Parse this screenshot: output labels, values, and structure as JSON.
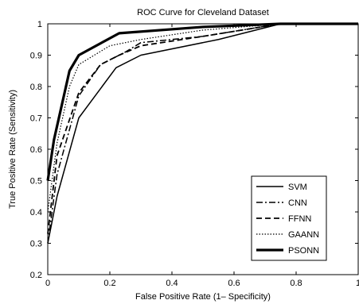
{
  "chart_data": {
    "type": "line",
    "title": "ROC Curve for Cleveland Dataset",
    "xlabel": "False Positive Rate (1– Specificity)",
    "ylabel": "True Positive Rate (Sensitivity)",
    "xlim": [
      0,
      1
    ],
    "ylim": [
      0.2,
      1
    ],
    "xticks": [
      "0",
      "0.2",
      "0.4",
      "0.6",
      "0.8",
      "1"
    ],
    "yticks": [
      "0.2",
      "0.3",
      "0.4",
      "0.5",
      "0.6",
      "0.7",
      "0.8",
      "0.9",
      "1"
    ],
    "grid": false,
    "legend_position": "bottom-right",
    "series": [
      {
        "name": "SVM",
        "line_style": "solid",
        "points": [
          [
            0,
            0.3
          ],
          [
            0.03,
            0.45
          ],
          [
            0.1,
            0.7
          ],
          [
            0.22,
            0.86
          ],
          [
            0.3,
            0.9
          ],
          [
            0.55,
            0.95
          ],
          [
            0.75,
            1.0
          ],
          [
            1.0,
            1.0
          ]
        ]
      },
      {
        "name": "CNN",
        "line_style": "dash-dot",
        "points": [
          [
            0,
            0.3
          ],
          [
            0.03,
            0.52
          ],
          [
            0.1,
            0.77
          ],
          [
            0.17,
            0.87
          ],
          [
            0.25,
            0.91
          ],
          [
            0.3,
            0.94
          ],
          [
            0.5,
            0.96
          ],
          [
            0.75,
            1.0
          ],
          [
            1.0,
            1.0
          ]
        ]
      },
      {
        "name": "FFNN",
        "line_style": "dashed",
        "points": [
          [
            0,
            0.33
          ],
          [
            0.03,
            0.58
          ],
          [
            0.1,
            0.78
          ],
          [
            0.17,
            0.87
          ],
          [
            0.23,
            0.9
          ],
          [
            0.3,
            0.93
          ],
          [
            0.5,
            0.96
          ],
          [
            0.75,
            1.0
          ],
          [
            1.0,
            1.0
          ]
        ]
      },
      {
        "name": "GAANN",
        "line_style": "dotted",
        "points": [
          [
            0,
            0.4
          ],
          [
            0.03,
            0.62
          ],
          [
            0.07,
            0.8
          ],
          [
            0.1,
            0.87
          ],
          [
            0.2,
            0.93
          ],
          [
            0.3,
            0.95
          ],
          [
            0.5,
            0.98
          ],
          [
            0.75,
            1.0
          ],
          [
            1.0,
            1.0
          ]
        ]
      },
      {
        "name": "PSONN",
        "line_style": "solid-thick",
        "points": [
          [
            0,
            0.5
          ],
          [
            0.02,
            0.63
          ],
          [
            0.07,
            0.85
          ],
          [
            0.1,
            0.9
          ],
          [
            0.23,
            0.97
          ],
          [
            0.5,
            0.99
          ],
          [
            0.75,
            1.0
          ],
          [
            1.0,
            1.0
          ]
        ]
      }
    ]
  }
}
